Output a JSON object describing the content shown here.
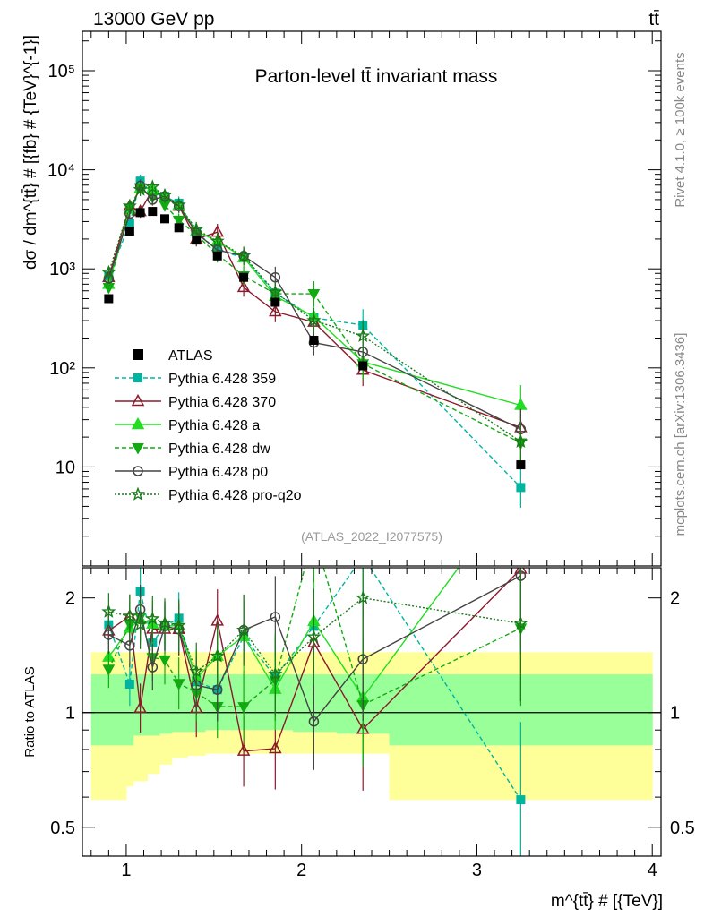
{
  "header": {
    "energy": "13000 GeV pp",
    "process": "tt̄",
    "side_label_top": "Rivet 4.1.0, ≥ 100k events",
    "side_label_bottom": "mcplots.cern.ch [arXiv:1306.3436]",
    "analysis_id": "(ATLAS_2022_I2077575)"
  },
  "chart_data": {
    "type": "scatter",
    "title": "Parton-level tt̄ invariant mass",
    "xlabel": "m^{tt̄} # [{TeV}]",
    "ylabel": "dσ / dm^{tt̄} # [{fb} # {TeV}^{-1}]",
    "ratio_ylabel": "Ratio to ATLAS",
    "xlim": [
      0.75,
      4.05
    ],
    "ylim": [
      1,
      250000
    ],
    "ratio_ylim": [
      0.42,
      2.4
    ],
    "x_ticks": [
      1,
      2,
      3,
      4
    ],
    "x_tick_labels": [
      "1",
      "2",
      "3",
      "4"
    ],
    "y_ticks": [
      10,
      100,
      1000,
      10000,
      100000
    ],
    "y_tick_labels": [
      "10",
      "10²",
      "10³",
      "10⁴",
      "10⁵"
    ],
    "ratio_ticks": [
      0.5,
      1,
      2
    ],
    "ratio_tick_labels": [
      "0.5",
      "1",
      "2"
    ],
    "x": [
      0.9,
      1.02,
      1.08,
      1.15,
      1.22,
      1.3,
      1.4,
      1.52,
      1.67,
      1.85,
      2.07,
      2.35,
      3.25
    ],
    "data": {
      "name": "ATLAS",
      "values": [
        500,
        2400,
        3700,
        3800,
        3200,
        2600,
        1950,
        1350,
        820,
        460,
        190,
        105,
        10.5
      ]
    },
    "series": [
      {
        "name": "Pythia 6.428 359",
        "color": "#00b5a0",
        "marker": "square",
        "dash": "5,3",
        "values": [
          850,
          2850,
          7700,
          5800,
          5400,
          4600,
          2350,
          1550,
          1300,
          570,
          320,
          270,
          6.2
        ]
      },
      {
        "name": "Pythia 6.428 370",
        "color": "#8b1a2b",
        "marker": "triangle-open",
        "dash": "",
        "values": [
          820,
          4300,
          3800,
          6300,
          5300,
          4300,
          2000,
          2350,
          650,
          370,
          290,
          95,
          25
        ]
      },
      {
        "name": "Pythia 6.428 a",
        "color": "#22dd22",
        "marker": "triangle",
        "dash": "",
        "values": [
          700,
          4000,
          6500,
          6500,
          5400,
          4400,
          2400,
          1900,
          1300,
          530,
          330,
          115,
          42
        ]
      },
      {
        "name": "Pythia 6.428 dw",
        "color": "#11aa11",
        "marker": "triangle-down",
        "dash": "5,3",
        "values": [
          650,
          4100,
          6600,
          5300,
          4400,
          3100,
          2200,
          1400,
          850,
          560,
          560,
          110,
          17.5
        ]
      },
      {
        "name": "Pythia 6.428 p0",
        "color": "#444444",
        "marker": "circle-open",
        "dash": "",
        "values": [
          800,
          3600,
          6900,
          5000,
          5400,
          4300,
          2300,
          1550,
          1350,
          820,
          180,
          145,
          24
        ]
      },
      {
        "name": "Pythia 6.428 pro-q2o",
        "color": "#1a7a1a",
        "marker": "star",
        "dash": "2,2",
        "values": [
          920,
          4300,
          6300,
          6700,
          5500,
          4400,
          2500,
          1900,
          1350,
          580,
          300,
          210,
          18
        ]
      }
    ],
    "band_edges": [
      0.8,
      1.0,
      1.04,
      1.12,
      1.19,
      1.26,
      1.35,
      1.45,
      1.6,
      1.75,
      1.95,
      2.2,
      2.5,
      4.0
    ],
    "band_inner": [
      [
        0.82,
        1.26
      ],
      [
        0.82,
        1.26
      ],
      [
        0.87,
        1.26
      ],
      [
        0.87,
        1.26
      ],
      [
        0.88,
        1.26
      ],
      [
        0.89,
        1.26
      ],
      [
        0.89,
        1.26
      ],
      [
        0.9,
        1.26
      ],
      [
        0.9,
        1.26
      ],
      [
        0.9,
        1.26
      ],
      [
        0.89,
        1.26
      ],
      [
        0.88,
        1.26
      ],
      [
        0.82,
        1.26
      ]
    ],
    "band_outer": [
      [
        0.59,
        1.44
      ],
      [
        0.64,
        1.44
      ],
      [
        0.66,
        1.44
      ],
      [
        0.69,
        1.44
      ],
      [
        0.73,
        1.44
      ],
      [
        0.76,
        1.44
      ],
      [
        0.77,
        1.44
      ],
      [
        0.78,
        1.44
      ],
      [
        0.78,
        1.44
      ],
      [
        0.78,
        1.44
      ],
      [
        0.78,
        1.44
      ],
      [
        0.78,
        1.44
      ],
      [
        0.59,
        1.44
      ]
    ],
    "legend_position": "left-middle"
  }
}
